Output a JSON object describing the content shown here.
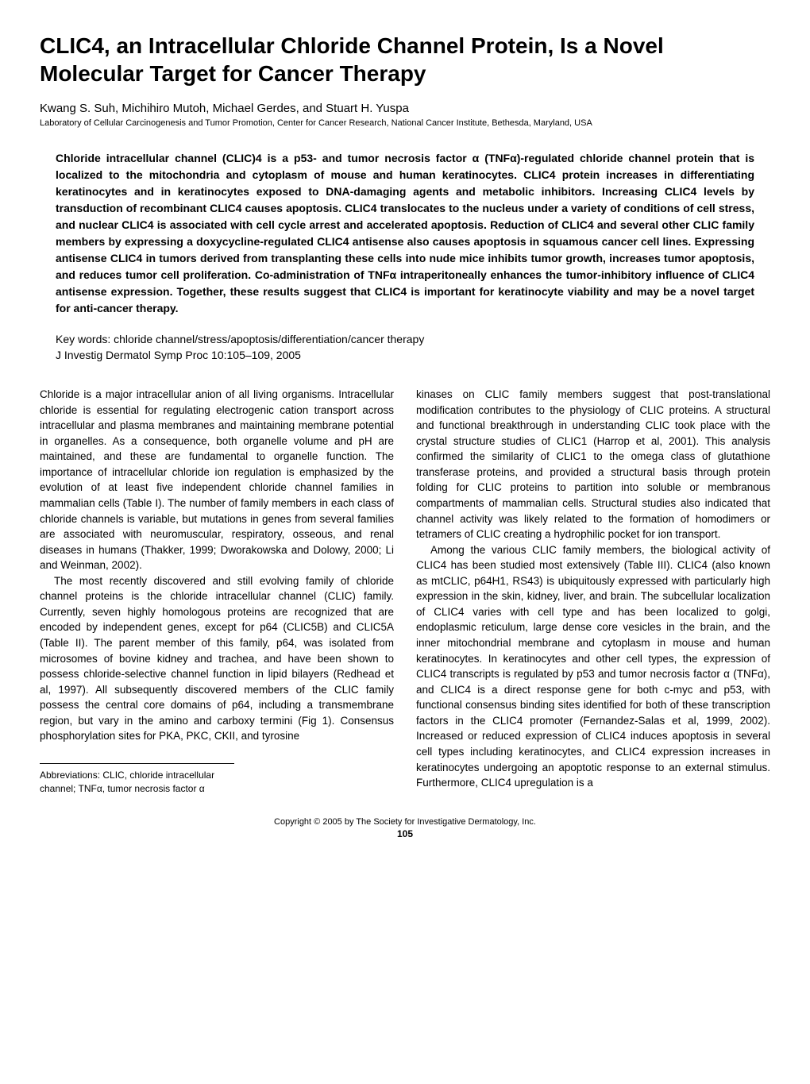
{
  "title": "CLIC4, an Intracellular Chloride Channel Protein, Is a Novel Molecular Target for Cancer Therapy",
  "authors": "Kwang S. Suh, Michihiro Mutoh, Michael Gerdes, and Stuart H. Yuspa",
  "affiliation": "Laboratory of Cellular Carcinogenesis and Tumor Promotion, Center for Cancer Research, National Cancer Institute, Bethesda, Maryland, USA",
  "abstract": "Chloride intracellular channel (CLIC)4 is a p53- and tumor necrosis factor α (TNFα)-regulated chloride channel protein that is localized to the mitochondria and cytoplasm of mouse and human keratinocytes. CLIC4 protein increases in differentiating keratinocytes and in keratinocytes exposed to DNA-damaging agents and metabolic inhibitors. Increasing CLIC4 levels by transduction of recombinant CLIC4 causes apoptosis. CLIC4 translocates to the nucleus under a variety of conditions of cell stress, and nuclear CLIC4 is associated with cell cycle arrest and accelerated apoptosis. Reduction of CLIC4 and several other CLIC family members by expressing a doxycycline-regulated CLIC4 antisense also causes apoptosis in squamous cancer cell lines. Expressing antisense CLIC4 in tumors derived from transplanting these cells into nude mice inhibits tumor growth, increases tumor apoptosis, and reduces tumor cell proliferation. Co-administration of TNFα intraperitoneally enhances the tumor-inhibitory influence of CLIC4 antisense expression. Together, these results suggest that CLIC4 is important for keratinocyte viability and may be a novel target for anti-cancer therapy.",
  "keywords": "Key words: chloride channel/stress/apoptosis/differentiation/cancer therapy",
  "citation": "J Investig Dermatol Symp Proc 10:105–109, 2005",
  "body": {
    "left": {
      "p1": "Chloride is a major intracellular anion of all living organisms. Intracellular chloride is essential for regulating electrogenic cation transport across intracellular and plasma membranes and maintaining membrane potential in organelles. As a consequence, both organelle volume and pH are maintained, and these are fundamental to organelle function. The importance of intracellular chloride ion regulation is emphasized by the evolution of at least five independent chloride channel families in mammalian cells (Table I). The number of family members in each class of chloride channels is variable, but mutations in genes from several families are associated with neuromuscular, respiratory, osseous, and renal diseases in humans (Thakker, 1999; Dworakowska and Dolowy, 2000; Li and Weinman, 2002).",
      "p2": "The most recently discovered and still evolving family of chloride channel proteins is the chloride intracellular channel (CLIC) family. Currently, seven highly homologous proteins are recognized that are encoded by independent genes, except for p64 (CLIC5B) and CLIC5A (Table II). The parent member of this family, p64, was isolated from microsomes of bovine kidney and trachea, and have been shown to possess chloride-selective channel function in lipid bilayers (Redhead et al, 1997). All subsequently discovered members of the CLIC family possess the central core domains of p64, including a transmembrane region, but vary in the amino and carboxy termini (Fig 1). Consensus phosphorylation sites for PKA, PKC, CKII, and tyrosine"
    },
    "right": {
      "p1": "kinases on CLIC family members suggest that post-translational modification contributes to the physiology of CLIC proteins. A structural and functional breakthrough in understanding CLIC took place with the crystal structure studies of CLIC1 (Harrop et al, 2001). This analysis confirmed the similarity of CLIC1 to the omega class of glutathione transferase proteins, and provided a structural basis through protein folding for CLIC proteins to partition into soluble or membranous compartments of mammalian cells. Structural studies also indicated that channel activity was likely related to the formation of homodimers or tetramers of CLIC creating a hydrophilic pocket for ion transport.",
      "p2": "Among the various CLIC family members, the biological activity of CLIC4 has been studied most extensively (Table III). CLIC4 (also known as mtCLIC, p64H1, RS43) is ubiquitously expressed with particularly high expression in the skin, kidney, liver, and brain. The subcellular localization of CLIC4 varies with cell type and has been localized to golgi, endoplasmic reticulum, large dense core vesicles in the brain, and the inner mitochondrial membrane and cytoplasm in mouse and human keratinocytes. In keratinocytes and other cell types, the expression of CLIC4 transcripts is regulated by p53 and tumor necrosis factor α (TNFα), and CLIC4 is a direct response gene for both c-myc and p53, with functional consensus binding sites identified for both of these transcription factors in the CLIC4 promoter (Fernandez-Salas et al, 1999, 2002). Increased or reduced expression of CLIC4 induces apoptosis in several cell types including keratinocytes, and CLIC4 expression increases in keratinocytes undergoing an apoptotic response to an external stimulus. Furthermore, CLIC4 upregulation is a"
    }
  },
  "abbrev": "Abbreviations: CLIC, chloride intracellular channel; TNFα, tumor necrosis factor α",
  "copyright": "Copyright © 2005 by The Society for Investigative Dermatology, Inc.",
  "pagenum": "105"
}
